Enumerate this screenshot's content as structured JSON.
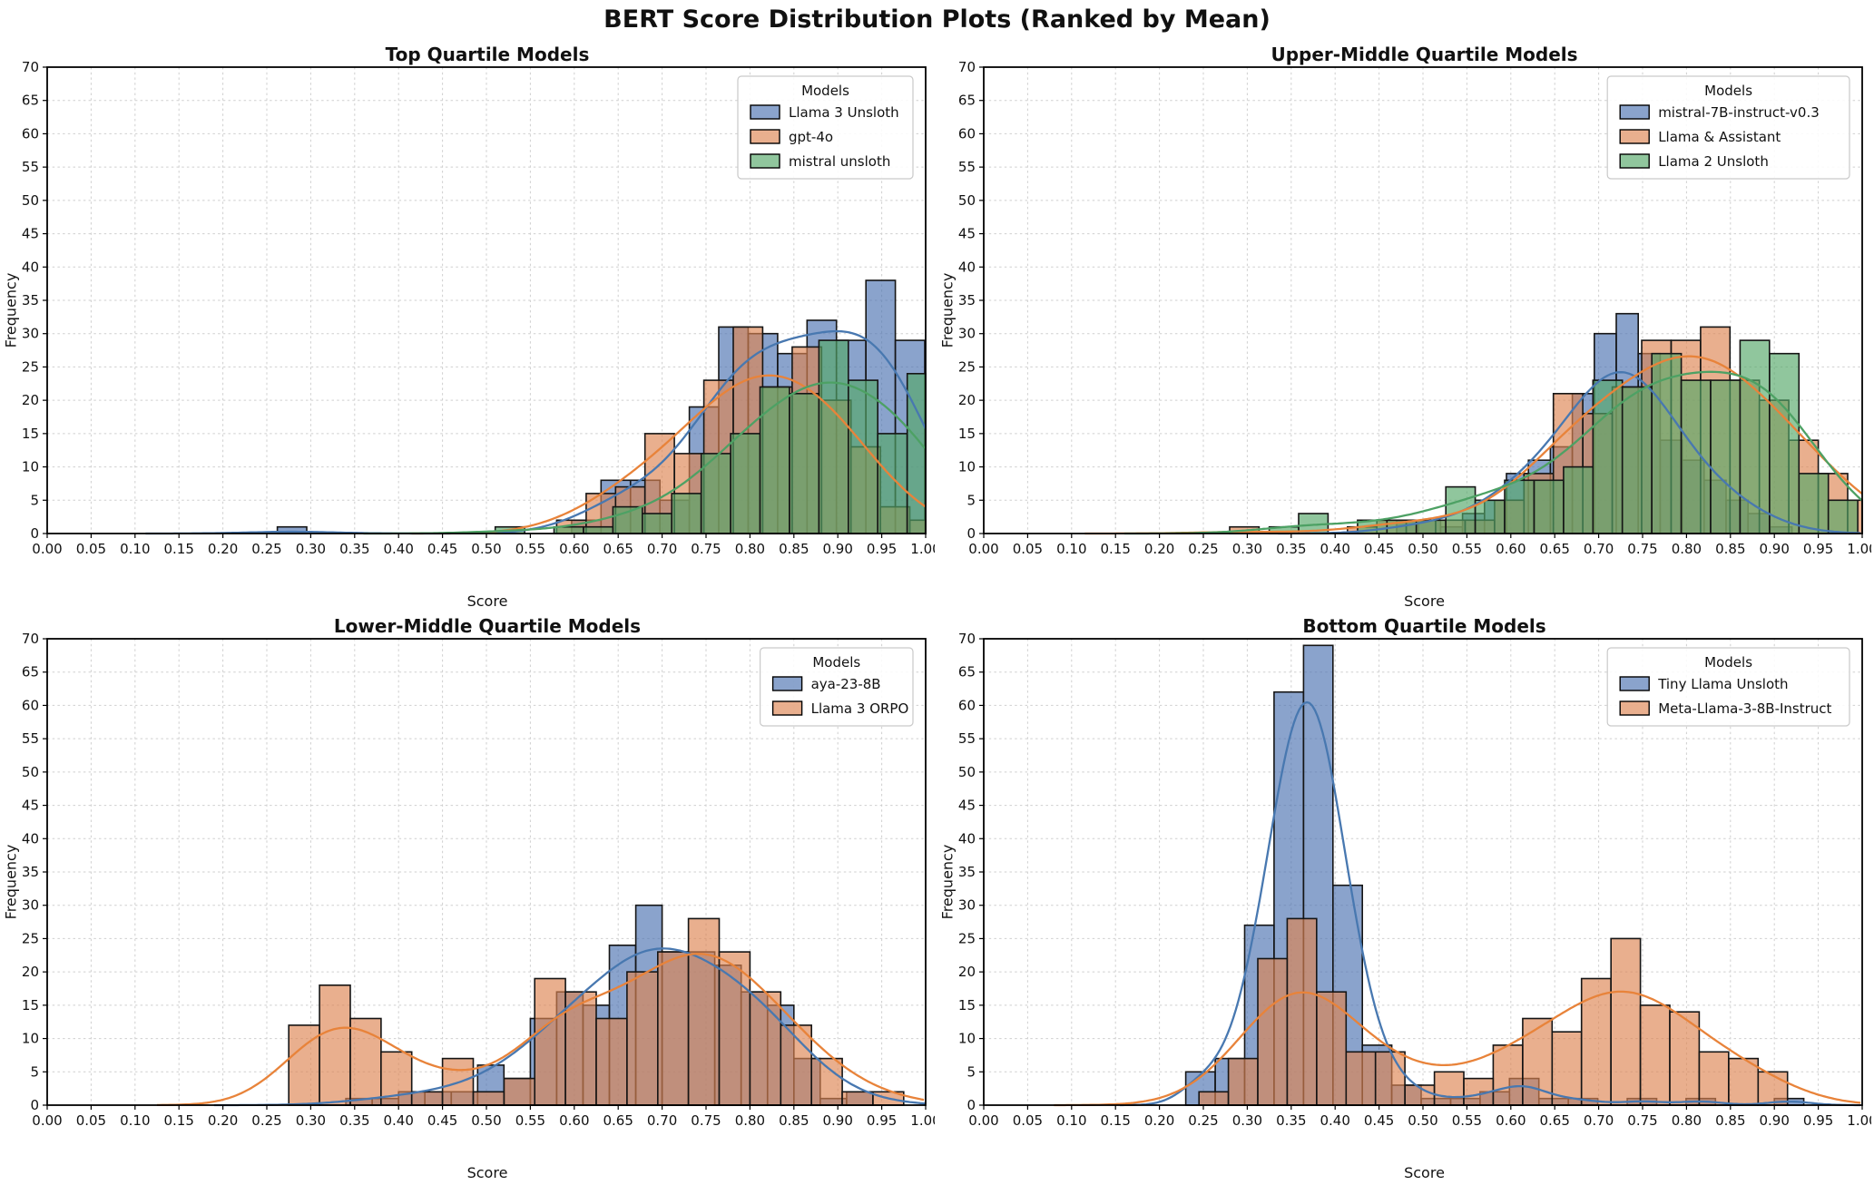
{
  "figure": {
    "title": "BERT Score Distribution Plots (Ranked by Mean)",
    "background": "#ffffff"
  },
  "axes": {
    "xlabel": "Score",
    "ylabel": "Frequency",
    "xmin": 0,
    "xmax": 1,
    "ymin": 0,
    "ymax": 70,
    "xtick_step": 0.05,
    "ytick_step": 5,
    "grid": "dashed"
  },
  "colors": {
    "blue": {
      "line": "#4878b0",
      "fill": "#4C72B0"
    },
    "orange": {
      "line": "#e8833a",
      "fill": "#DD8452"
    },
    "green": {
      "line": "#4da164",
      "fill": "#55A868"
    },
    "bar_edge": "#151515",
    "bar_opacity": 0.65,
    "grid_color": "#cfcfcf"
  },
  "chart_data": [
    {
      "type": "histogram+kde",
      "title": "Top Quartile Models",
      "legend_title": "Models",
      "legend_position": "upper right",
      "xlabel": "Score",
      "ylabel": "Frequency",
      "xlim": [
        0,
        1
      ],
      "ylim": [
        0,
        70
      ],
      "series": [
        {
          "name": "Llama 3 Unsloth",
          "color": "blue",
          "bin_start": 0.262,
          "bin_width": 0.0335,
          "kde_bw": 0.05,
          "counts": [
            1,
            0,
            0,
            0,
            0,
            0,
            0,
            0,
            0,
            0,
            2,
            8,
            8,
            5,
            19,
            31,
            30,
            27,
            32,
            29,
            38,
            29
          ]
        },
        {
          "name": "gpt-4o",
          "color": "orange",
          "bin_start": 0.58,
          "bin_width": 0.0335,
          "kde_bw": 0.055,
          "counts": [
            2,
            6,
            7,
            15,
            12,
            23,
            31,
            22,
            28,
            20,
            13,
            4,
            2
          ]
        },
        {
          "name": "mistral unsloth",
          "color": "green",
          "bin_start": 0.51,
          "bin_width": 0.0335,
          "kde_bw": 0.05,
          "counts": [
            1,
            0,
            1,
            1,
            4,
            3,
            6,
            12,
            15,
            22,
            21,
            29,
            23,
            15,
            24
          ]
        }
      ]
    },
    {
      "type": "histogram+kde",
      "title": "Upper-Middle Quartile Models",
      "legend_title": "Models",
      "legend_position": "upper right",
      "xlabel": "Score",
      "ylabel": "Frequency",
      "xlim": [
        0,
        1
      ],
      "ylim": [
        0,
        70
      ],
      "series": [
        {
          "name": "mistral-7B-instruct-v0.3",
          "color": "blue",
          "bin_start": 0.47,
          "bin_width": 0.025,
          "kde_bw": 0.045,
          "counts": [
            2,
            2,
            1,
            3,
            5,
            9,
            11,
            13,
            21,
            30,
            33,
            27,
            14,
            11,
            8,
            5,
            3,
            1
          ]
        },
        {
          "name": "Llama & Assistant",
          "color": "orange",
          "bin_start": 0.28,
          "bin_width": 0.0335,
          "kde_bw": 0.055,
          "counts": [
            1,
            0,
            0,
            0,
            1,
            2,
            2,
            2,
            2,
            5,
            9,
            21,
            18,
            22,
            29,
            29,
            31,
            23,
            20,
            14,
            9,
            5
          ]
        },
        {
          "name": "Llama 2 Unsloth",
          "color": "green",
          "bin_start": 0.325,
          "bin_width": 0.0335,
          "kde_bw": 0.055,
          "counts": [
            1,
            3,
            0,
            2,
            2,
            2,
            7,
            5,
            8,
            8,
            10,
            23,
            22,
            27,
            23,
            23,
            29,
            27,
            9,
            5
          ]
        }
      ]
    },
    {
      "type": "histogram+kde",
      "title": "Lower-Middle Quartile Models",
      "legend_title": "Models",
      "legend_position": "upper right",
      "xlabel": "Score",
      "ylabel": "Frequency",
      "xlim": [
        0,
        1
      ],
      "ylim": [
        0,
        70
      ],
      "series": [
        {
          "name": "aya-23-8B",
          "color": "blue",
          "bin_start": 0.34,
          "bin_width": 0.03,
          "kde_bw": 0.05,
          "counts": [
            1,
            1,
            2,
            2,
            2,
            6,
            4,
            13,
            17,
            15,
            24,
            30,
            23,
            23,
            21,
            17,
            15,
            7,
            1,
            2
          ]
        },
        {
          "name": "Llama 3 ORPO",
          "color": "orange",
          "bin_start": 0.275,
          "bin_width": 0.035,
          "kde_bw": 0.05,
          "counts": [
            12,
            18,
            13,
            8,
            2,
            7,
            2,
            4,
            19,
            17,
            13,
            20,
            23,
            28,
            23,
            17,
            12,
            7,
            2,
            2
          ]
        }
      ]
    },
    {
      "type": "histogram+kde",
      "title": "Bottom Quartile Models",
      "legend_title": "Models",
      "legend_position": "upper right",
      "xlabel": "Score",
      "ylabel": "Frequency",
      "xlim": [
        0,
        1
      ],
      "ylim": [
        0,
        70
      ],
      "series": [
        {
          "name": "Tiny Llama Unsloth",
          "color": "blue",
          "bin_start": 0.23,
          "bin_width": 0.0335,
          "kde_bw": 0.025,
          "counts": [
            5,
            7,
            27,
            62,
            69,
            33,
            9,
            3,
            1,
            1,
            2,
            4,
            1,
            1,
            0,
            1,
            0,
            1,
            0,
            0,
            1
          ]
        },
        {
          "name": "Meta-Llama-3-8B-Instruct",
          "color": "orange",
          "bin_start": 0.245,
          "bin_width": 0.0335,
          "kde_bw": 0.055,
          "counts": [
            2,
            7,
            22,
            28,
            17,
            8,
            8,
            3,
            5,
            4,
            9,
            13,
            11,
            19,
            25,
            15,
            14,
            8,
            7,
            5
          ]
        }
      ]
    }
  ]
}
